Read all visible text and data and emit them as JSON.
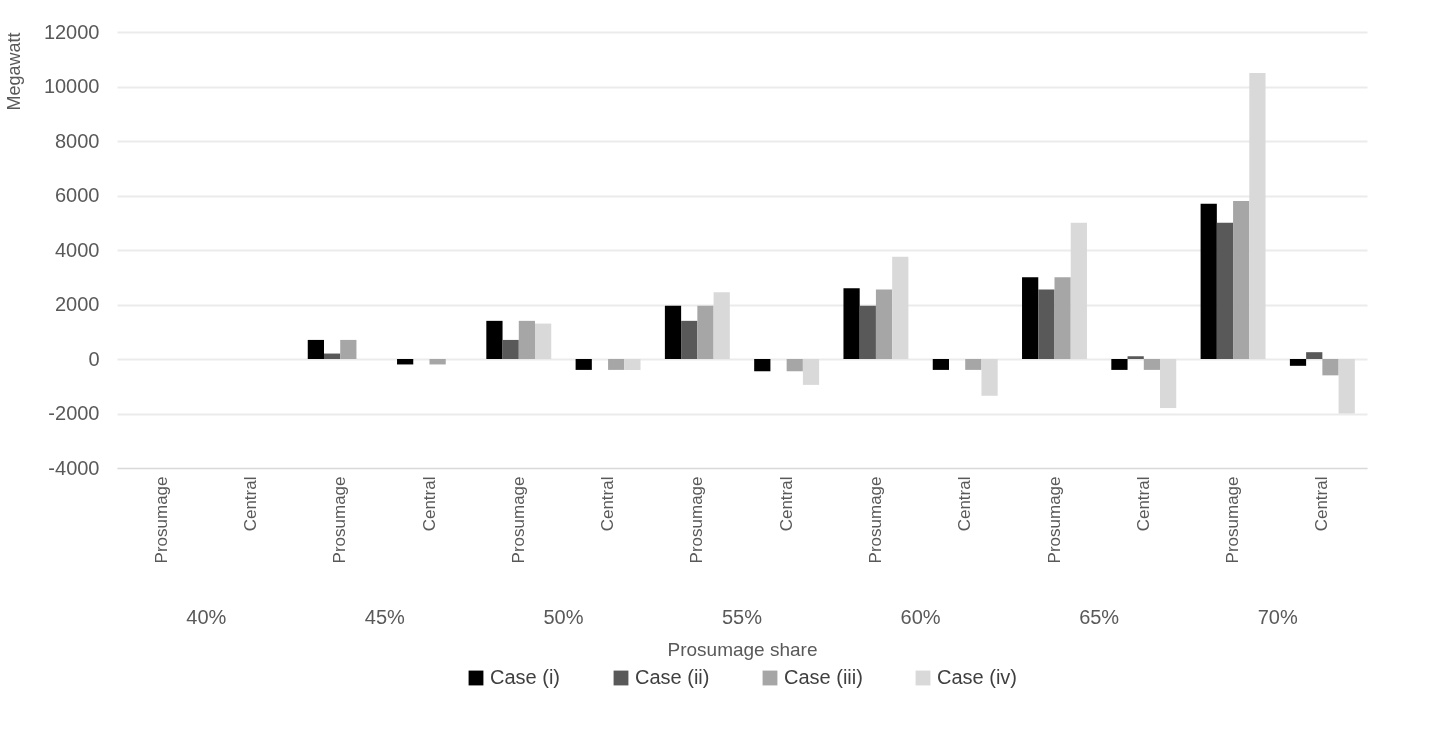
{
  "chart_data": {
    "type": "bar",
    "xlabel": "Prosumage share",
    "ylabel": "Megawatt",
    "categories": [
      "Prosumage",
      "Central",
      "Prosumage",
      "Central",
      "Prosumage",
      "Central",
      "Prosumage",
      "Central",
      "Prosumage",
      "Central",
      "Prosumage",
      "Central",
      "Prosumage",
      "Central"
    ],
    "annotations": [
      "40%",
      "45%",
      "50%",
      "55%",
      "60%",
      "65%",
      "70%"
    ],
    "series": [
      {
        "name": "Case (i)",
        "color": "#000000",
        "values": [
          0,
          0,
          700,
          -200,
          1400,
          -400,
          1950,
          -450,
          2600,
          -400,
          3000,
          -400,
          5700,
          -250
        ]
      },
      {
        "name": "Case (ii)",
        "color": "#595959",
        "values": [
          0,
          0,
          200,
          0,
          700,
          0,
          1400,
          0,
          1950,
          0,
          2550,
          100,
          5000,
          250
        ]
      },
      {
        "name": "Case (iii)",
        "color": "#a6a6a6",
        "values": [
          0,
          0,
          700,
          -200,
          1400,
          -400,
          1950,
          -450,
          2550,
          -400,
          3000,
          -400,
          5800,
          -600
        ]
      },
      {
        "name": "Case (iv)",
        "color": "#d9d9d9",
        "values": [
          0,
          0,
          0,
          0,
          1300,
          -400,
          2450,
          -950,
          3750,
          -1350,
          5000,
          -1800,
          10500,
          -2000
        ]
      }
    ],
    "ylim": [
      -4000,
      12000
    ],
    "yticks": [
      -4000,
      -2000,
      0,
      2000,
      4000,
      6000,
      8000,
      10000,
      12000
    ],
    "grid": "y",
    "legend": "bottom"
  }
}
